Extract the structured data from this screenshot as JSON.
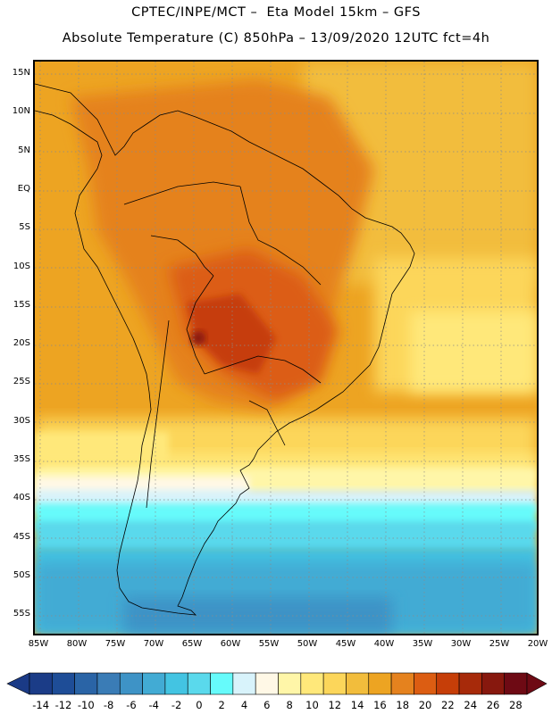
{
  "title_line1": "CPTEC/INPE/MCT –  Eta Model 15km – GFS",
  "title_line2": "Absolute Temperature (C) 850hPa – 13/09/2020 12UTC fct=4h",
  "lat_labels": [
    "15N",
    "10N",
    "5N",
    "EQ",
    "5S",
    "10S",
    "15S",
    "20S",
    "25S",
    "30S",
    "35S",
    "40S",
    "45S",
    "50S",
    "55S"
  ],
  "lon_labels": [
    "85W",
    "80W",
    "75W",
    "70W",
    "65W",
    "60W",
    "55W",
    "50W",
    "45W",
    "40W",
    "35W",
    "30W",
    "25W",
    "20W"
  ],
  "colorbar": {
    "labels": [
      "-14",
      "-12",
      "-10",
      "-8",
      "-6",
      "-4",
      "-2",
      "0",
      "2",
      "4",
      "6",
      "8",
      "10",
      "12",
      "14",
      "16",
      "18",
      "20",
      "22",
      "24",
      "26",
      "28"
    ],
    "colors": [
      "#1b3c87",
      "#1e4d97",
      "#2a64a6",
      "#3a7cb6",
      "#3e93c6",
      "#42abd4",
      "#43c4e2",
      "#5ad9ec",
      "#66fbfb",
      "#d8f3fb",
      "#fff8e6",
      "#fff6a8",
      "#ffe87a",
      "#fcd65a",
      "#f2bd3c",
      "#eda422",
      "#e5821e",
      "#dc5d12",
      "#c63e08",
      "#a72a0a",
      "#87180e",
      "#6e0a14"
    ],
    "under_color": "#1a3a86",
    "over_color": "#6e0a14"
  }
}
